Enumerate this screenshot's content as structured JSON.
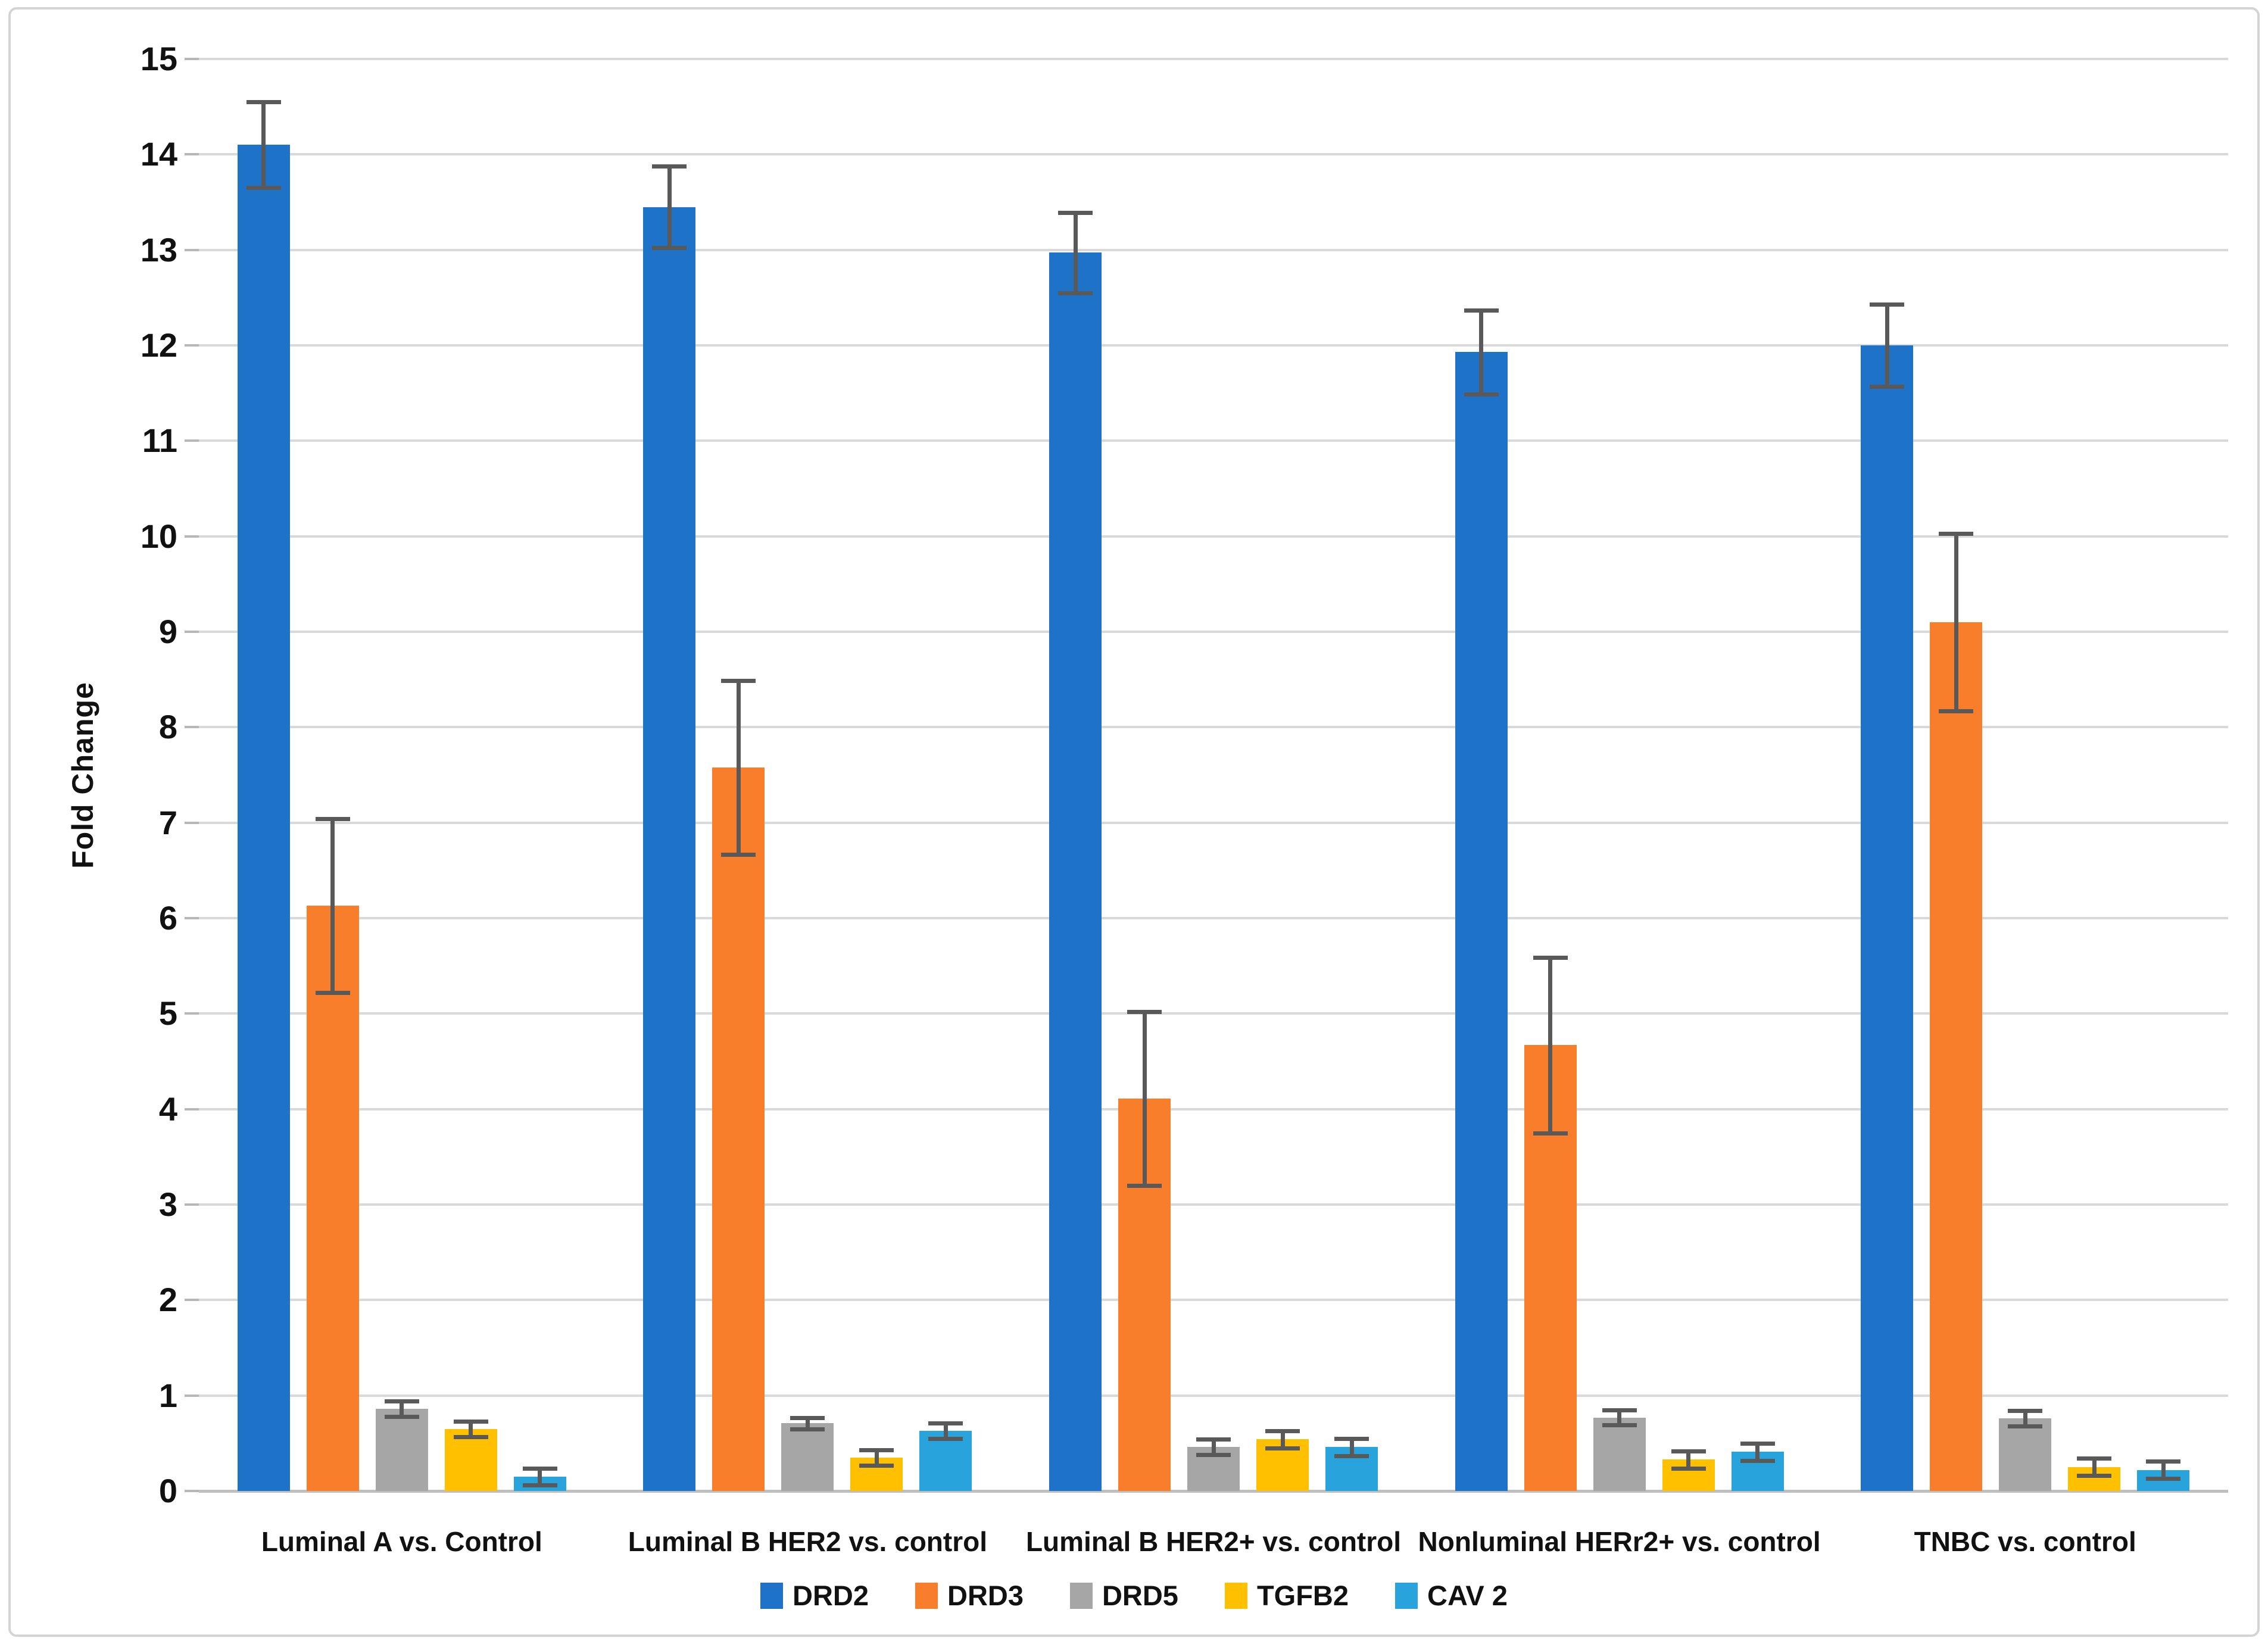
{
  "figure": {
    "background": "#ffffff",
    "border_color": "#d4d4d4",
    "gridline_color": "#d9d9d9",
    "error_bar_color": "#595959",
    "text_color": "#111111"
  },
  "chart_data": {
    "type": "bar",
    "title": "",
    "xlabel": "",
    "ylabel": "Fold Change",
    "ylim": [
      0,
      15
    ],
    "ytick_step": 1,
    "y_ticks": [
      0,
      1,
      2,
      3,
      4,
      5,
      6,
      7,
      8,
      9,
      10,
      11,
      12,
      13,
      14,
      15
    ],
    "grid": true,
    "legend_position": "bottom",
    "categories": [
      "Luminal A vs. Control",
      "Luminal B HER2 vs. control",
      "Luminal B HER2+ vs. control",
      "Nonluminal HERr2+ vs. control",
      "TNBC vs. control"
    ],
    "series": [
      {
        "name": "DRD2",
        "color": "#1e73c8",
        "values": [
          14.1,
          13.45,
          12.97,
          11.93,
          12.0
        ],
        "errors": [
          0.45,
          0.43,
          0.42,
          0.44,
          0.43
        ]
      },
      {
        "name": "DRD3",
        "color": "#f97e2b",
        "values": [
          6.13,
          7.58,
          4.11,
          4.67,
          9.1
        ],
        "errors": [
          0.91,
          0.91,
          0.91,
          0.92,
          0.93
        ]
      },
      {
        "name": "DRD5",
        "color": "#a6a6a6",
        "values": [
          0.86,
          0.71,
          0.46,
          0.77,
          0.76
        ],
        "errors": [
          0.08,
          0.06,
          0.08,
          0.08,
          0.08
        ]
      },
      {
        "name": "TGFB2",
        "color": "#ffc000",
        "values": [
          0.65,
          0.35,
          0.54,
          0.33,
          0.25
        ],
        "errors": [
          0.08,
          0.08,
          0.09,
          0.09,
          0.09
        ]
      },
      {
        "name": "CAV 2",
        "color": "#29a3dc",
        "values": [
          0.15,
          0.63,
          0.46,
          0.41,
          0.22
        ],
        "errors": [
          0.09,
          0.08,
          0.09,
          0.09,
          0.09
        ]
      }
    ]
  }
}
